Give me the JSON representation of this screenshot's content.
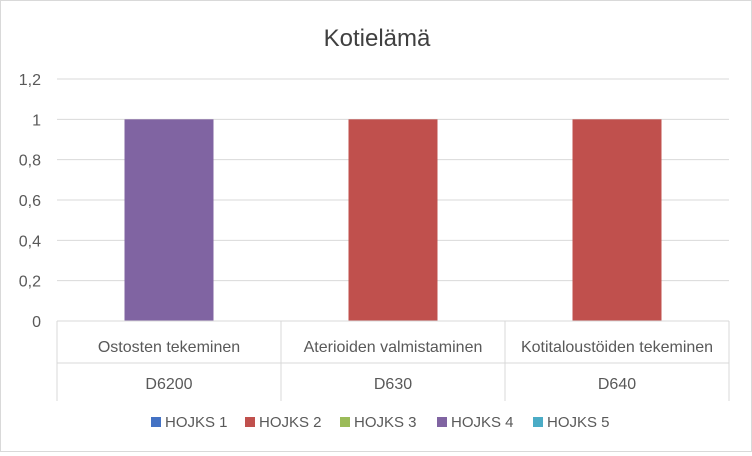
{
  "chart_data": {
    "type": "bar",
    "title": "Kotielämä",
    "ylim": [
      0,
      1.2
    ],
    "y_ticks": [
      "0",
      "0,2",
      "0,4",
      "0,6",
      "0,8",
      "1",
      "1,2"
    ],
    "categories": [
      {
        "label": "Ostosten tekeminen",
        "code": "D6200"
      },
      {
        "label": "Aterioiden valmistaminen",
        "code": "D630"
      },
      {
        "label": "Kotitaloustöiden tekeminen",
        "code": "D640"
      }
    ],
    "series": [
      {
        "name": "HOJKS 1",
        "color": "#4472C4",
        "values": [
          0,
          0,
          0
        ]
      },
      {
        "name": "HOJKS 2",
        "color": "#C0504D",
        "values": [
          0,
          1,
          1
        ]
      },
      {
        "name": "HOJKS 3",
        "color": "#9BBB59",
        "values": [
          0,
          0,
          0
        ]
      },
      {
        "name": "HOJKS 4",
        "color": "#8064A2",
        "values": [
          1,
          0,
          0
        ]
      },
      {
        "name": "HOJKS 5",
        "color": "#4BACC6",
        "values": [
          0,
          0,
          0
        ]
      }
    ],
    "grid": true,
    "legend_position": "bottom"
  }
}
